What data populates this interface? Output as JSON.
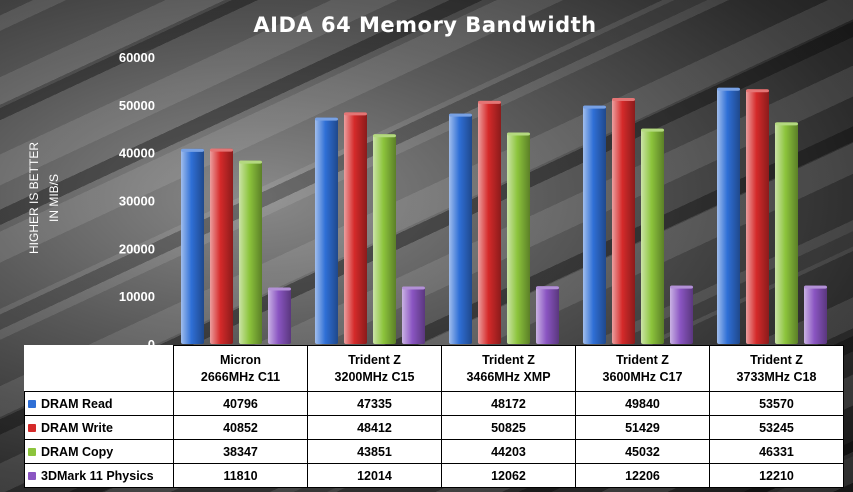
{
  "chart_data": {
    "type": "bar",
    "title": "AIDA 64 Memory Bandwidth",
    "ylabel_line1": "HIGHER IS BETTER",
    "ylabel_line2": "IN MIB/S",
    "ylim": [
      0,
      60000
    ],
    "yticks": [
      0,
      10000,
      20000,
      30000,
      40000,
      50000,
      60000
    ],
    "legend_position": "table-below",
    "categories": [
      {
        "line1": "Micron",
        "line2": "2666MHz C11"
      },
      {
        "line1": "Trident Z",
        "line2": "3200MHz C15"
      },
      {
        "line1": "Trident Z",
        "line2": "3466MHz XMP"
      },
      {
        "line1": "Trident Z",
        "line2": "3600MHz C17"
      },
      {
        "line1": "Trident Z",
        "line2": "3733MHz C18"
      }
    ],
    "series": [
      {
        "name": "DRAM Read",
        "color": "#2f6fd6",
        "values": [
          40796,
          47335,
          48172,
          49840,
          53570
        ]
      },
      {
        "name": "DRAM Write",
        "color": "#d52a2a",
        "values": [
          40852,
          48412,
          50825,
          51429,
          53245
        ]
      },
      {
        "name": "DRAM Copy",
        "color": "#8cc43c",
        "values": [
          38347,
          43851,
          44203,
          45032,
          46331
        ]
      },
      {
        "name": "3DMark 11 Physics",
        "color": "#8a55c2",
        "values": [
          11810,
          12014,
          12062,
          12206,
          12210
        ]
      }
    ]
  }
}
